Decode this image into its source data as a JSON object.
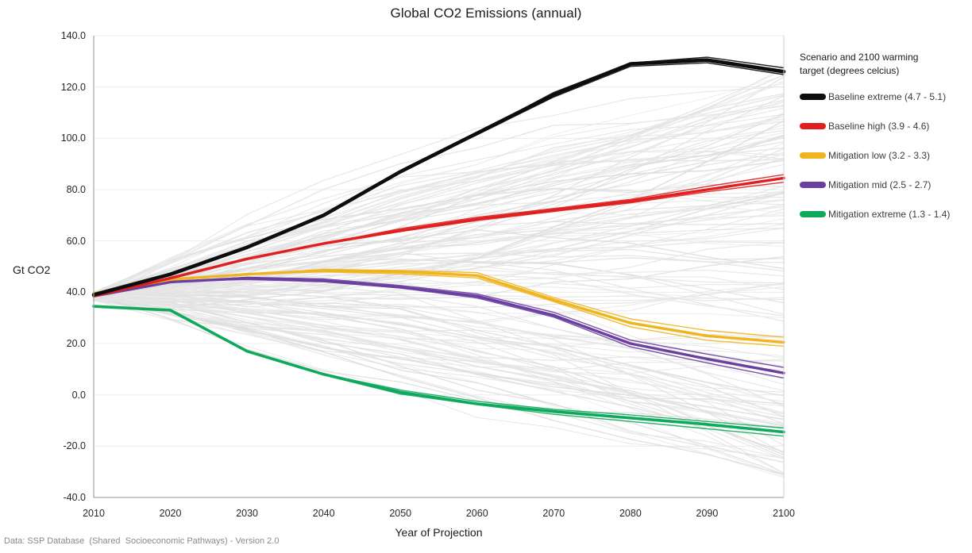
{
  "title": "Global CO2 Emissions (annual)",
  "y_axis": {
    "label": "Gt CO2",
    "ticks": [
      "140.0",
      "120.0",
      "100.0",
      "80.0",
      "60.0",
      "40.0",
      "20.0",
      "0.0",
      "-20.0",
      "-40.0"
    ]
  },
  "x_axis": {
    "label": "Year of Projection",
    "ticks": [
      "2010",
      "2020",
      "2030",
      "2040",
      "2050",
      "2060",
      "2070",
      "2080",
      "2090",
      "2100"
    ]
  },
  "legend": {
    "title_lines": [
      "Scenario and 2100 warming",
      "target (degrees celcius)"
    ],
    "entries": [
      {
        "label": "Baseline extreme (4.7 - 5.1)",
        "color": "#0d0d0d"
      },
      {
        "label": "Baseline high (3.9 - 4.6)",
        "color": "#e01f1f"
      },
      {
        "label": "Mitigation low (3.2 - 3.3)",
        "color": "#f0b41f"
      },
      {
        "label": "Mitigation mid (2.5 - 2.7)",
        "color": "#6a3fa0"
      },
      {
        "label": "Mitigation extreme (1.3 - 1.4)",
        "color": "#0ea95c"
      }
    ]
  },
  "footer": "Data: SSP Database  (Shared  Socioeconomic Pathways) - Version 2.0",
  "chart_data": {
    "type": "line",
    "title": "Global CO2 Emissions (annual)",
    "xlabel": "Year of Projection",
    "ylabel": "Gt CO2",
    "xlim": [
      2010,
      2100
    ],
    "ylim": [
      -40,
      140
    ],
    "grid": true,
    "legend_position": "right",
    "x": [
      2010,
      2020,
      2030,
      2040,
      2050,
      2060,
      2070,
      2080,
      2090,
      2100
    ],
    "series": [
      {
        "name": "Baseline extreme (4.7 - 5.1)",
        "color": "#0d0d0d",
        "values": [
          39,
          47,
          57.5,
          70,
          87,
          102,
          117,
          129,
          130.5,
          126
        ]
      },
      {
        "name": "Baseline high (3.9 - 4.6)",
        "color": "#e01f1f",
        "values": [
          38.5,
          45.5,
          53,
          59,
          64,
          68.5,
          72,
          75.5,
          80,
          84.5
        ]
      },
      {
        "name": "Mitigation low (3.2 - 3.3)",
        "color": "#f0b41f",
        "values": [
          39.5,
          45,
          47,
          48.5,
          48,
          46.5,
          37,
          28,
          23,
          20.5
        ]
      },
      {
        "name": "Mitigation mid (2.5 - 2.7)",
        "color": "#6a3fa0",
        "values": [
          38.5,
          44,
          45.5,
          44.5,
          42,
          38.5,
          31,
          20,
          14,
          8.5
        ]
      },
      {
        "name": "Mitigation extreme (1.3 - 1.4)",
        "color": "#0ea95c",
        "values": [
          34.5,
          33,
          17,
          8,
          1,
          -3.5,
          -6.5,
          -9,
          -11.5,
          -14.5
        ]
      }
    ],
    "background_ensemble": {
      "description": "All individual SSP scenario runs drawn as thin light-gray lines; they start near 38 Gt in 2010 and fan out to between about -33 and +128 Gt by 2100",
      "count": 140,
      "start_value_range": [
        36.5,
        40
      ],
      "end_value_range": [
        -33,
        128
      ],
      "color": "#e3e3e3"
    }
  }
}
